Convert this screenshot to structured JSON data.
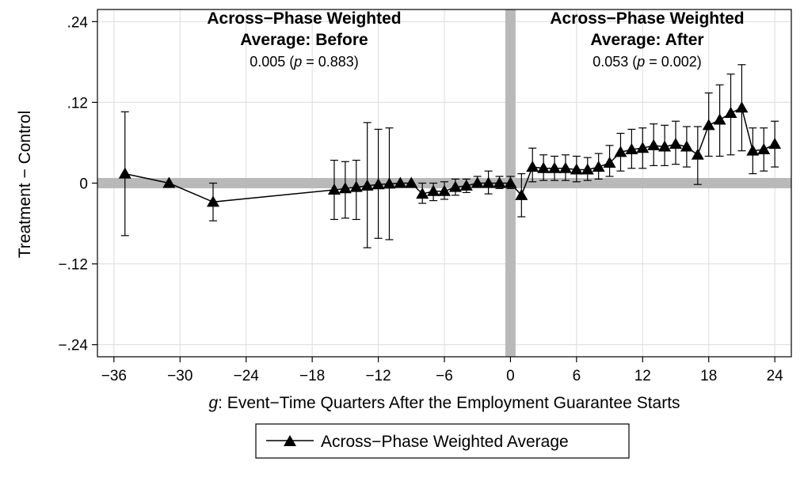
{
  "chart_data": {
    "type": "line",
    "xlabel_italic": "g",
    "xlabel_rest": ": Event−Time Quarters After the Employment Guarantee Starts",
    "ylabel": "Treatment − Control",
    "xlim": [
      -37.5,
      25.5
    ],
    "ylim": [
      -0.258,
      0.258
    ],
    "x_ticks": [
      -36,
      -30,
      -24,
      -18,
      -12,
      -6,
      0,
      6,
      12,
      18,
      24
    ],
    "x_tick_labels": [
      "−36",
      "−30",
      "−24",
      "−18",
      "−12",
      "−6",
      "0",
      "6",
      "12",
      "18",
      "24"
    ],
    "y_ticks": [
      0.24,
      0.12,
      0,
      -0.12,
      -0.24
    ],
    "y_tick_labels": [
      ".24",
      ".12",
      "0",
      "−.12",
      "−.24"
    ],
    "grid": true,
    "reference_lines": {
      "x": 0,
      "y": 0,
      "color": "#b9b9b9"
    },
    "legend_position": "bottom-center",
    "series": [
      {
        "name": "Across−Phase Weighted Average",
        "marker": "triangle",
        "color": "#000000",
        "x": [
          -35,
          -31,
          -27,
          -16,
          -15,
          -14,
          -13,
          -12,
          -11,
          -10,
          -9,
          -8,
          -7,
          -6,
          -5,
          -4,
          -3,
          -2,
          -1,
          0,
          1,
          2,
          3,
          4,
          5,
          6,
          7,
          8,
          9,
          10,
          11,
          12,
          13,
          14,
          15,
          16,
          17,
          18,
          19,
          20,
          21,
          22,
          23,
          24
        ],
        "y": [
          0.014,
          0.0,
          -0.028,
          -0.01,
          -0.008,
          -0.006,
          -0.004,
          -0.002,
          -0.001,
          0.0,
          0.0,
          -0.016,
          -0.012,
          -0.012,
          -0.006,
          -0.004,
          0.0,
          0.0,
          0.0,
          0.0,
          -0.018,
          0.024,
          0.022,
          0.022,
          0.022,
          0.02,
          0.02,
          0.024,
          0.03,
          0.046,
          0.05,
          0.052,
          0.056,
          0.054,
          0.058,
          0.054,
          0.042,
          0.086,
          0.094,
          0.104,
          0.112,
          0.048,
          0.05,
          0.058
        ],
        "lower": [
          -0.078,
          null,
          -0.056,
          -0.054,
          -0.052,
          -0.054,
          -0.096,
          -0.082,
          -0.084,
          null,
          null,
          -0.03,
          -0.026,
          -0.024,
          -0.018,
          -0.014,
          -0.004,
          -0.016,
          -0.008,
          -0.008,
          -0.05,
          0.002,
          0.004,
          0.004,
          0.004,
          0.002,
          0.004,
          0.006,
          0.01,
          0.018,
          0.022,
          0.022,
          0.026,
          0.026,
          0.028,
          0.024,
          -0.002,
          0.04,
          0.04,
          0.042,
          0.048,
          0.014,
          0.018,
          0.024
        ],
        "upper": [
          0.106,
          null,
          0.0,
          0.034,
          0.032,
          0.034,
          0.09,
          0.08,
          0.082,
          null,
          null,
          0.0,
          0.0,
          0.002,
          0.006,
          0.006,
          0.01,
          0.018,
          0.01,
          0.01,
          0.014,
          0.052,
          0.042,
          0.04,
          0.042,
          0.04,
          0.038,
          0.044,
          0.056,
          0.074,
          0.08,
          0.082,
          0.088,
          0.086,
          0.092,
          0.084,
          0.084,
          0.134,
          0.146,
          0.162,
          0.176,
          0.082,
          0.082,
          0.092
        ]
      }
    ],
    "annotations": {
      "before": {
        "title_line1": "Across−Phase Weighted",
        "title_line2": "Average: Before",
        "value_prefix": "0.005 (",
        "p_label": "p",
        "value_suffix": " = 0.883)"
      },
      "after": {
        "title_line1": "Across−Phase Weighted",
        "title_line2": "Average: After",
        "value_prefix": "0.053 (",
        "p_label": "p",
        "value_suffix": " = 0.002)"
      }
    },
    "legend": {
      "label": "Across−Phase Weighted Average"
    }
  }
}
